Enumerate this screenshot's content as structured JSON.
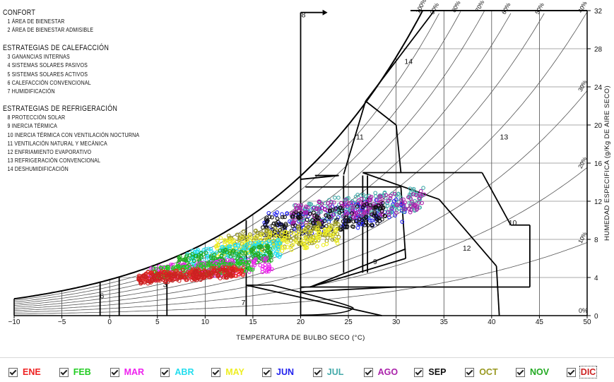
{
  "legend": {
    "comfort_title": "CONFORT",
    "comfort_items": [
      "1  ÁREA DE BIENESTAR",
      "2  ÁREA DE BIENESTAR ADMISIBLE"
    ],
    "heating_title": "ESTRATEGIAS  DE  CALEFACCIÓN",
    "heating_items": [
      "3  GANANCIAS INTERNAS",
      "4  SISTEMAS SOLARES PASIVOS",
      "5  SISTEMAS SOLARES ACTIVOS",
      "6  CALEFACCIÓN CONVENCIONAL",
      "7  HUMIDIFICACIÓN"
    ],
    "cooling_title": "ESTRATEGIAS  DE  REFRIGERACIÓN",
    "cooling_items": [
      "8  PROTECCIÓN SOLAR",
      "9  INERCIA TÉRMICA",
      "10 INERCIA TÉRMICA CON VENTILACIÓN NOCTURNA",
      "11  VENTILACIÓN NATURAL Y MECÁNICA",
      "12 ENFRIAMIENTO EVAPORATIVO",
      "13  REFRIGERACIÓN CONVENCIONAL",
      "14  DESHUMIDIFICACIÓN"
    ]
  },
  "chart_data": {
    "type": "scatter",
    "subtype": "psychrometric",
    "xlabel": "TEMPERATURA DE BULBO SECO (°C)",
    "ylabel": "HUMEDAD ESPECIFICA (g/Kg DE AIRE SECO)",
    "xlim": [
      -10,
      50
    ],
    "ylim": [
      0,
      32
    ],
    "x_ticks": [
      -10,
      -5,
      0,
      5,
      10,
      15,
      20,
      25,
      30,
      35,
      40,
      45,
      50
    ],
    "y_ticks": [
      0,
      4,
      8,
      12,
      16,
      20,
      24,
      28,
      32
    ],
    "x_tick_labels": [
      "−10",
      "−5",
      "0",
      "5",
      "10",
      "15",
      "20",
      "25",
      "30",
      "35",
      "40",
      "45",
      "50"
    ],
    "y_tick_labels": [
      "0",
      "4",
      "8",
      "12",
      "16",
      "20",
      "24",
      "28",
      "32"
    ],
    "rh_curves": [
      {
        "label": "0%",
        "rh": 0
      },
      {
        "label": "10%",
        "rh": 0.1
      },
      {
        "label": "20%",
        "rh": 0.2
      },
      {
        "label": "30%",
        "rh": 0.3
      },
      {
        "label": "40%",
        "rh": 0.4
      },
      {
        "label": "50%",
        "rh": 0.5
      },
      {
        "label": "60%",
        "rh": 0.6
      },
      {
        "label": "70%",
        "rh": 0.7
      },
      {
        "label": "80%",
        "rh": 0.8
      },
      {
        "label": "90%",
        "rh": 0.9
      },
      {
        "label": "100%",
        "rh": 1.0
      }
    ],
    "zones": [
      {
        "label": "1",
        "polygon": [
          [
            20.5,
            4
          ],
          [
            24.5,
            4
          ],
          [
            24.5,
            12
          ],
          [
            20.5,
            12
          ]
        ]
      },
      {
        "label": "2",
        "polygon": [
          [
            19,
            3.2
          ],
          [
            27,
            3.2
          ],
          [
            27,
            14.5
          ],
          [
            19,
            14.5
          ]
        ]
      },
      {
        "label": "3",
        "polygon": [
          [
            6,
            3
          ],
          [
            14.3,
            3
          ],
          [
            14.3,
            9
          ],
          [
            6,
            9
          ]
        ]
      },
      {
        "label": "4",
        "polygon": [
          [
            1,
            2.5
          ],
          [
            6,
            2.5
          ],
          [
            6,
            7
          ],
          [
            1,
            7
          ]
        ]
      },
      {
        "label": "5",
        "polygon": [
          [
            -1,
            2
          ],
          [
            1,
            2
          ],
          [
            1,
            5
          ],
          [
            -1,
            5
          ]
        ]
      },
      {
        "label": "6",
        "polygon": [
          [
            -10,
            0
          ],
          [
            -1,
            0
          ],
          [
            -1,
            3
          ],
          [
            -10,
            3
          ]
        ]
      },
      {
        "label": "7",
        "polygon": [
          [
            14.3,
            0
          ],
          [
            25.5,
            0
          ],
          [
            25.5,
            3
          ],
          [
            14.3,
            3
          ]
        ]
      },
      {
        "label": "8",
        "polygon": [
          [
            20,
            0
          ],
          [
            20,
            31.8
          ],
          [
            22.3,
            31.8
          ]
        ]
      },
      {
        "label": "9",
        "polygon": [
          [
            20,
            3
          ],
          [
            31,
            3
          ],
          [
            31,
            13.5
          ],
          [
            20,
            13.5
          ]
        ]
      },
      {
        "label": "10",
        "polygon": [
          [
            27,
            15
          ],
          [
            44,
            15
          ],
          [
            44,
            3
          ],
          [
            27,
            3
          ]
        ]
      },
      {
        "label": "11",
        "polygon": [
          [
            26.8,
            22.5
          ],
          [
            30.5,
            15
          ],
          [
            40,
            15
          ],
          [
            40,
            3
          ]
        ]
      },
      {
        "label": "12",
        "polygon": [
          [
            24,
            3
          ],
          [
            41,
            3
          ],
          [
            41,
            15
          ],
          [
            24,
            15
          ]
        ]
      },
      {
        "label": "13",
        "polygon": [
          [
            31,
            15
          ],
          [
            48,
            15
          ],
          [
            48,
            3
          ],
          [
            31,
            3
          ]
        ]
      },
      {
        "label": "14",
        "polygon": [
          [
            26.8,
            22.5
          ],
          [
            34,
            32
          ]
        ]
      }
    ],
    "zone_labels": [
      {
        "label": "3",
        "x": 5.8,
        "y": 3.0
      },
      {
        "label": "6",
        "x": -0.8,
        "y": 1.8
      },
      {
        "label": "7",
        "x": 14.0,
        "y": 1.1
      },
      {
        "label": "8",
        "x": 20.3,
        "y": 31.3
      },
      {
        "label": "9",
        "x": 27.8,
        "y": 5.4
      },
      {
        "label": "10",
        "x": 42.2,
        "y": 9.5
      },
      {
        "label": "11",
        "x": 26.2,
        "y": 18.5
      },
      {
        "label": "12",
        "x": 37.4,
        "y": 6.8
      },
      {
        "label": "13",
        "x": 41.3,
        "y": 18.5
      },
      {
        "label": "14",
        "x": 31.3,
        "y": 26.4
      }
    ],
    "series": [
      {
        "name": "ENE",
        "color": "#ee2222",
        "t_range": [
          3,
          14
        ],
        "w_range": [
          3.5,
          5.2
        ]
      },
      {
        "name": "FEB",
        "color": "#22cc22",
        "t_range": [
          4,
          15
        ],
        "w_range": [
          3.8,
          5.8
        ]
      },
      {
        "name": "MAR",
        "color": "#ee22ee",
        "t_range": [
          4,
          17
        ],
        "w_range": [
          3.6,
          6.2
        ]
      },
      {
        "name": "ABR",
        "color": "#22ddee",
        "t_range": [
          8,
          18
        ],
        "w_range": [
          5,
          8
        ]
      },
      {
        "name": "MAY",
        "color": "#eeee22",
        "t_range": [
          11,
          24
        ],
        "w_range": [
          6,
          9.5
        ]
      },
      {
        "name": "JUN",
        "color": "#2222ee",
        "t_range": [
          16,
          31
        ],
        "w_range": [
          8,
          12.5
        ]
      },
      {
        "name": "JUL",
        "color": "#44aaaa",
        "t_range": [
          19,
          33
        ],
        "w_range": [
          9.5,
          13.5
        ]
      },
      {
        "name": "AGO",
        "color": "#aa22aa",
        "t_range": [
          19,
          33
        ],
        "w_range": [
          9.5,
          13.2
        ]
      },
      {
        "name": "SEP",
        "color": "#111111",
        "t_range": [
          16,
          29
        ],
        "w_range": [
          8,
          12
        ]
      },
      {
        "name": "OCT",
        "color": "#999922",
        "t_range": [
          12,
          24
        ],
        "w_range": [
          6.5,
          10
        ]
      },
      {
        "name": "NOV",
        "color": "#22aa22",
        "t_range": [
          7,
          17
        ],
        "w_range": [
          4.5,
          7.5
        ]
      },
      {
        "name": "DIC",
        "color": "#cc2222",
        "t_range": [
          3,
          13
        ],
        "w_range": [
          3.3,
          5
        ]
      }
    ]
  },
  "months": [
    {
      "label": "ENE",
      "color": "#ee2222",
      "checked": true
    },
    {
      "label": "FEB",
      "color": "#22cc22",
      "checked": true
    },
    {
      "label": "MAR",
      "color": "#ee22ee",
      "checked": true
    },
    {
      "label": "ABR",
      "color": "#22ddee",
      "checked": true
    },
    {
      "label": "MAY",
      "color": "#eeee22",
      "checked": true
    },
    {
      "label": "JUN",
      "color": "#2222ee",
      "checked": true
    },
    {
      "label": "JUL",
      "color": "#44aaaa",
      "checked": true
    },
    {
      "label": "AGO",
      "color": "#aa22aa",
      "checked": true
    },
    {
      "label": "SEP",
      "color": "#111111",
      "checked": true
    },
    {
      "label": "OCT",
      "color": "#999922",
      "checked": true
    },
    {
      "label": "NOV",
      "color": "#22aa22",
      "checked": true
    },
    {
      "label": "DIC",
      "color": "#cc2222",
      "checked": true
    }
  ]
}
